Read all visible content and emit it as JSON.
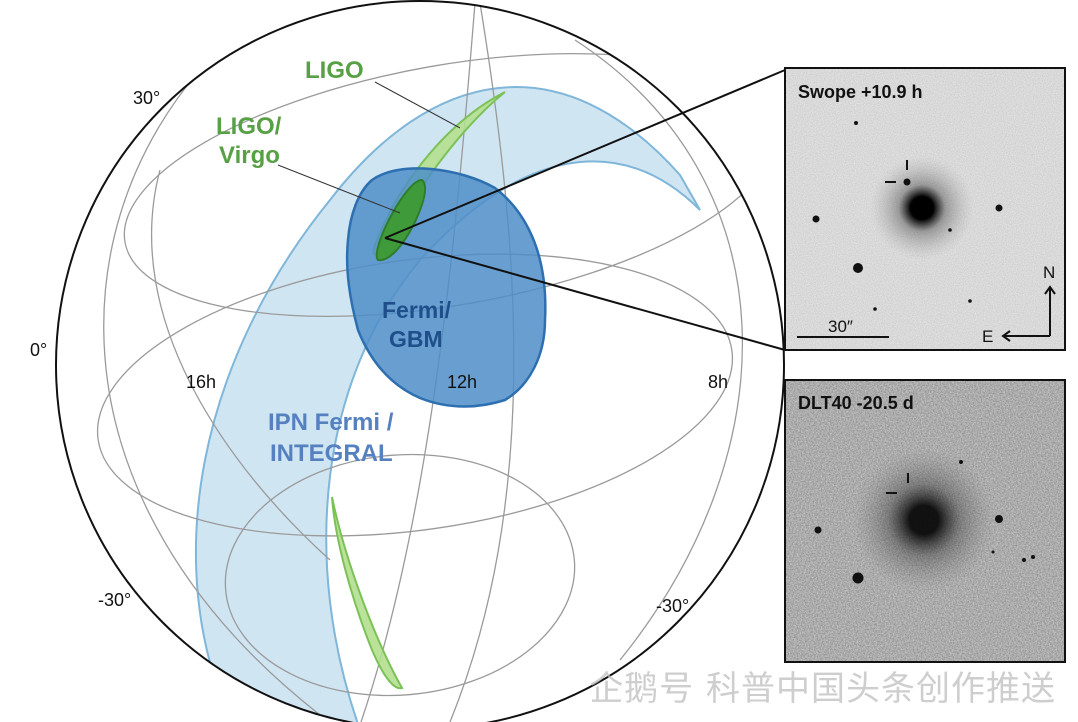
{
  "sky_map": {
    "labels": {
      "ligo": "LIGO",
      "ligo_virgo_line1": "LIGO/",
      "ligo_virgo_line2": "Virgo",
      "fermi_line1": "Fermi/",
      "fermi_line2": "GBM",
      "ipn_line1": "IPN Fermi /",
      "ipn_line2": "INTEGRAL"
    },
    "grid_labels": {
      "dec_30_left": "30°",
      "dec_0": "0°",
      "dec_m30_left": "-30°",
      "dec_m30_right": "-30°",
      "ra_16h": "16h",
      "ra_12h": "12h",
      "ra_8h": "8h"
    },
    "colors": {
      "ligo": "#57a045",
      "ligo_fill": "#b4df8e",
      "ligo_virgo_fill": "#3f9a3a",
      "fermi": "#2d6fb0",
      "fermi_fill": "#4f8ec8",
      "ipn_fill": "#a9d0e8",
      "ipn_text": "#5581c0",
      "grid": "#9a9a9a"
    }
  },
  "panels": [
    {
      "title": "Swope +10.9 h",
      "scale_label": "30″",
      "north": "N",
      "east": "E"
    },
    {
      "title": "DLT40 -20.5 d"
    }
  ],
  "watermark": "企鹅号 科普中国头条创作推送"
}
